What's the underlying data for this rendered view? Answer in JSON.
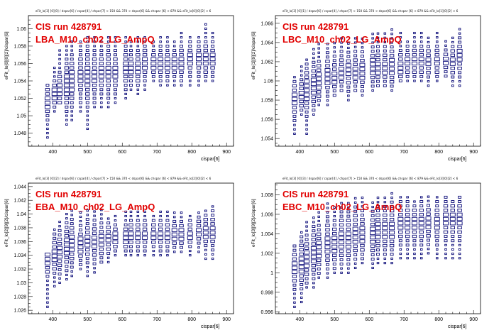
{
  "panels": [
    {
      "title_line": "eFit_lo[3] [0][0] / dspar[6] / cspar[4] / chpar[7] > 150 && 370 < dspar[6] && chspar [6] < 879 && eFit_lo[0][0][2] < 6",
      "run_label": "CIS run 428791",
      "module_label": "LBA_M10_ch02_LG_AmpQ",
      "ylabel": "eFit_lo[0][0][2]/cispar[6]",
      "xlabel": "cispar[6]"
    },
    {
      "title_line": "eFit_lo[3] [0][1] / dspar[6] / cspar[4] / chpar[7] > 150 && 370 < dspar[6] && chspar [6] < 879 && eFit_lo[1][0][2] < 6",
      "run_label": "CIS run 428791",
      "module_label": "LBC_M10_ch02_LG_AmpQ",
      "ylabel": "eFit_lo[1][9][2]/cispar[6]",
      "xlabel": "cispar[6]"
    },
    {
      "title_line": "eFit_lo[3] [0][2] / dspar[6] / cspar[4] / chpar[7] > 150 && 370 < dspar[6] && chspar [6] < 879 && eFit_lo[2][0][2] < 6",
      "run_label": "CIS run 428791",
      "module_label": "EBA_M10_ch02_LG_AmpQ",
      "ylabel": "eFit_lo[2][9][2]/cispar[6]",
      "xlabel": "cispar[6]"
    },
    {
      "title_line": "eFit_lo[3] [0][3] / dspar[6] / cspar[4] / chpar[7] > 150 && 370 < dspar[6] && chspar [6] < 879 && eFit_lo[3][0][2] < 6",
      "run_label": "CIS run 428791",
      "module_label": "EBC_M10_ch02_LG_AmpQ",
      "ylabel": "eFit_lo[3][9][2]/cispar[6]",
      "xlabel": "cispar[6]"
    }
  ],
  "colors": {
    "marker": "#0a0a78",
    "label": "#e10000",
    "axis": "#000000"
  },
  "chart_data": [
    {
      "type": "scatter",
      "xlim": [
        330,
        920
      ],
      "ylim": [
        1.0465,
        1.0615
      ],
      "xticks": [
        400,
        500,
        600,
        700,
        800,
        900
      ],
      "yticks": [
        1.048,
        1.05,
        1.052,
        1.054,
        1.056,
        1.058,
        1.06
      ],
      "x": [
        385,
        405,
        420,
        440,
        455,
        480,
        500,
        520,
        540,
        560,
        580,
        610,
        625,
        645,
        665,
        690,
        710,
        730,
        750,
        770,
        795,
        820,
        840,
        860
      ],
      "y_low": [
        1.0475,
        1.0505,
        1.0515,
        1.049,
        1.0495,
        1.0505,
        1.0485,
        1.051,
        1.051,
        1.051,
        1.0515,
        1.052,
        1.053,
        1.0525,
        1.053,
        1.054,
        1.0535,
        1.0535,
        1.0535,
        1.0535,
        1.0535,
        1.0535,
        1.054,
        1.054
      ],
      "y_high": [
        1.0535,
        1.0555,
        1.0575,
        1.058,
        1.0585,
        1.0585,
        1.059,
        1.059,
        1.0585,
        1.059,
        1.059,
        1.059,
        1.0585,
        1.059,
        1.059,
        1.0585,
        1.059,
        1.059,
        1.0585,
        1.0595,
        1.059,
        1.059,
        1.0605,
        1.0595
      ],
      "y_center": [
        1.0515,
        1.0525,
        1.053,
        1.0535,
        1.054,
        1.0545,
        1.0545,
        1.0545,
        1.055,
        1.055,
        1.055,
        1.0555,
        1.0555,
        1.0555,
        1.056,
        1.056,
        1.056,
        1.056,
        1.056,
        1.056,
        1.0565,
        1.0565,
        1.0565,
        1.0565
      ]
    },
    {
      "type": "scatter",
      "xlim": [
        330,
        920
      ],
      "ylim": [
        1.0532,
        1.0668
      ],
      "xticks": [
        400,
        500,
        600,
        700,
        800,
        900
      ],
      "yticks": [
        1.054,
        1.056,
        1.058,
        1.06,
        1.062,
        1.064,
        1.066
      ],
      "x": [
        385,
        405,
        420,
        440,
        455,
        480,
        500,
        520,
        540,
        560,
        580,
        610,
        625,
        645,
        665,
        690,
        710,
        730,
        750,
        770,
        795,
        820,
        840,
        860
      ],
      "y_low": [
        1.0545,
        1.0565,
        1.0545,
        1.0565,
        1.0575,
        1.0575,
        1.0585,
        1.059,
        1.058,
        1.059,
        1.0585,
        1.059,
        1.0595,
        1.0595,
        1.059,
        1.06,
        1.06,
        1.06,
        1.06,
        1.0595,
        1.06,
        1.0605,
        1.0595,
        1.0595
      ],
      "y_high": [
        1.0605,
        1.0615,
        1.0625,
        1.0635,
        1.064,
        1.064,
        1.064,
        1.0645,
        1.064,
        1.0645,
        1.0645,
        1.065,
        1.065,
        1.065,
        1.0655,
        1.065,
        1.0645,
        1.065,
        1.065,
        1.0645,
        1.065,
        1.0645,
        1.0645,
        1.0655
      ],
      "y_center": [
        1.058,
        1.0585,
        1.059,
        1.0595,
        1.06,
        1.0605,
        1.0605,
        1.061,
        1.061,
        1.061,
        1.061,
        1.0615,
        1.0615,
        1.0615,
        1.0615,
        1.0615,
        1.062,
        1.062,
        1.062,
        1.062,
        1.062,
        1.062,
        1.062,
        1.0625
      ]
    },
    {
      "type": "scatter",
      "xlim": [
        330,
        920
      ],
      "ylim": [
        1.0255,
        1.0445
      ],
      "xticks": [
        400,
        500,
        600,
        700,
        800,
        900
      ],
      "yticks": [
        1.026,
        1.028,
        1.03,
        1.032,
        1.034,
        1.036,
        1.038,
        1.04,
        1.042,
        1.044
      ],
      "x": [
        385,
        405,
        420,
        440,
        455,
        480,
        500,
        520,
        540,
        560,
        580,
        610,
        625,
        645,
        665,
        690,
        710,
        730,
        750,
        770,
        795,
        820,
        840,
        860
      ],
      "y_low": [
        1.0265,
        1.0295,
        1.03,
        1.0305,
        1.031,
        1.032,
        1.031,
        1.0315,
        1.033,
        1.033,
        1.034,
        1.034,
        1.034,
        1.034,
        1.034,
        1.034,
        1.034,
        1.034,
        1.0345,
        1.0345,
        1.034,
        1.0345,
        1.0335,
        1.0335
      ],
      "y_high": [
        1.0345,
        1.038,
        1.039,
        1.0405,
        1.041,
        1.0405,
        1.0405,
        1.0405,
        1.041,
        1.0395,
        1.04,
        1.0405,
        1.0405,
        1.0405,
        1.0405,
        1.04,
        1.0405,
        1.0405,
        1.0405,
        1.0405,
        1.04,
        1.0405,
        1.0405,
        1.0415
      ],
      "y_center": [
        1.0335,
        1.034,
        1.0345,
        1.035,
        1.0355,
        1.0355,
        1.036,
        1.036,
        1.036,
        1.0365,
        1.0365,
        1.0365,
        1.037,
        1.037,
        1.037,
        1.037,
        1.037,
        1.037,
        1.037,
        1.037,
        1.037,
        1.0375,
        1.0375,
        1.0375
      ]
    },
    {
      "type": "scatter",
      "xlim": [
        330,
        920
      ],
      "ylim": [
        0.9958,
        1.0092
      ],
      "xticks": [
        400,
        500,
        600,
        700,
        800,
        900
      ],
      "yticks": [
        0.996,
        0.998,
        1,
        1.002,
        1.004,
        1.006,
        1.008
      ],
      "x": [
        385,
        405,
        420,
        440,
        455,
        480,
        500,
        520,
        540,
        560,
        580,
        610,
        625,
        645,
        665,
        690,
        710,
        730,
        750,
        770,
        795,
        820,
        840,
        860
      ],
      "y_low": [
        0.9965,
        0.997,
        0.9985,
        0.9985,
        0.9995,
        0.9995,
        1.0,
        1.0,
        1.0,
        1.0005,
        1.001,
        1.0005,
        1.001,
        1.001,
        1.001,
        1.0015,
        1.0015,
        1.0015,
        1.0015,
        1.002,
        1.0015,
        1.0015,
        1.0015,
        1.0015
      ],
      "y_high": [
        1.003,
        1.0045,
        1.0055,
        1.006,
        1.0065,
        1.0075,
        1.007,
        1.0075,
        1.0075,
        1.008,
        1.008,
        1.0075,
        1.008,
        1.008,
        1.0085,
        1.008,
        1.008,
        1.0075,
        1.008,
        1.008,
        1.008,
        1.008,
        1.0075,
        1.008
      ],
      "y_center": [
        1.0005,
        1.001,
        1.0015,
        1.002,
        1.0025,
        1.003,
        1.003,
        1.0035,
        1.0035,
        1.004,
        1.004,
        1.004,
        1.0045,
        1.0045,
        1.0045,
        1.005,
        1.005,
        1.005,
        1.005,
        1.005,
        1.005,
        1.0055,
        1.0055,
        1.0055
      ]
    }
  ]
}
